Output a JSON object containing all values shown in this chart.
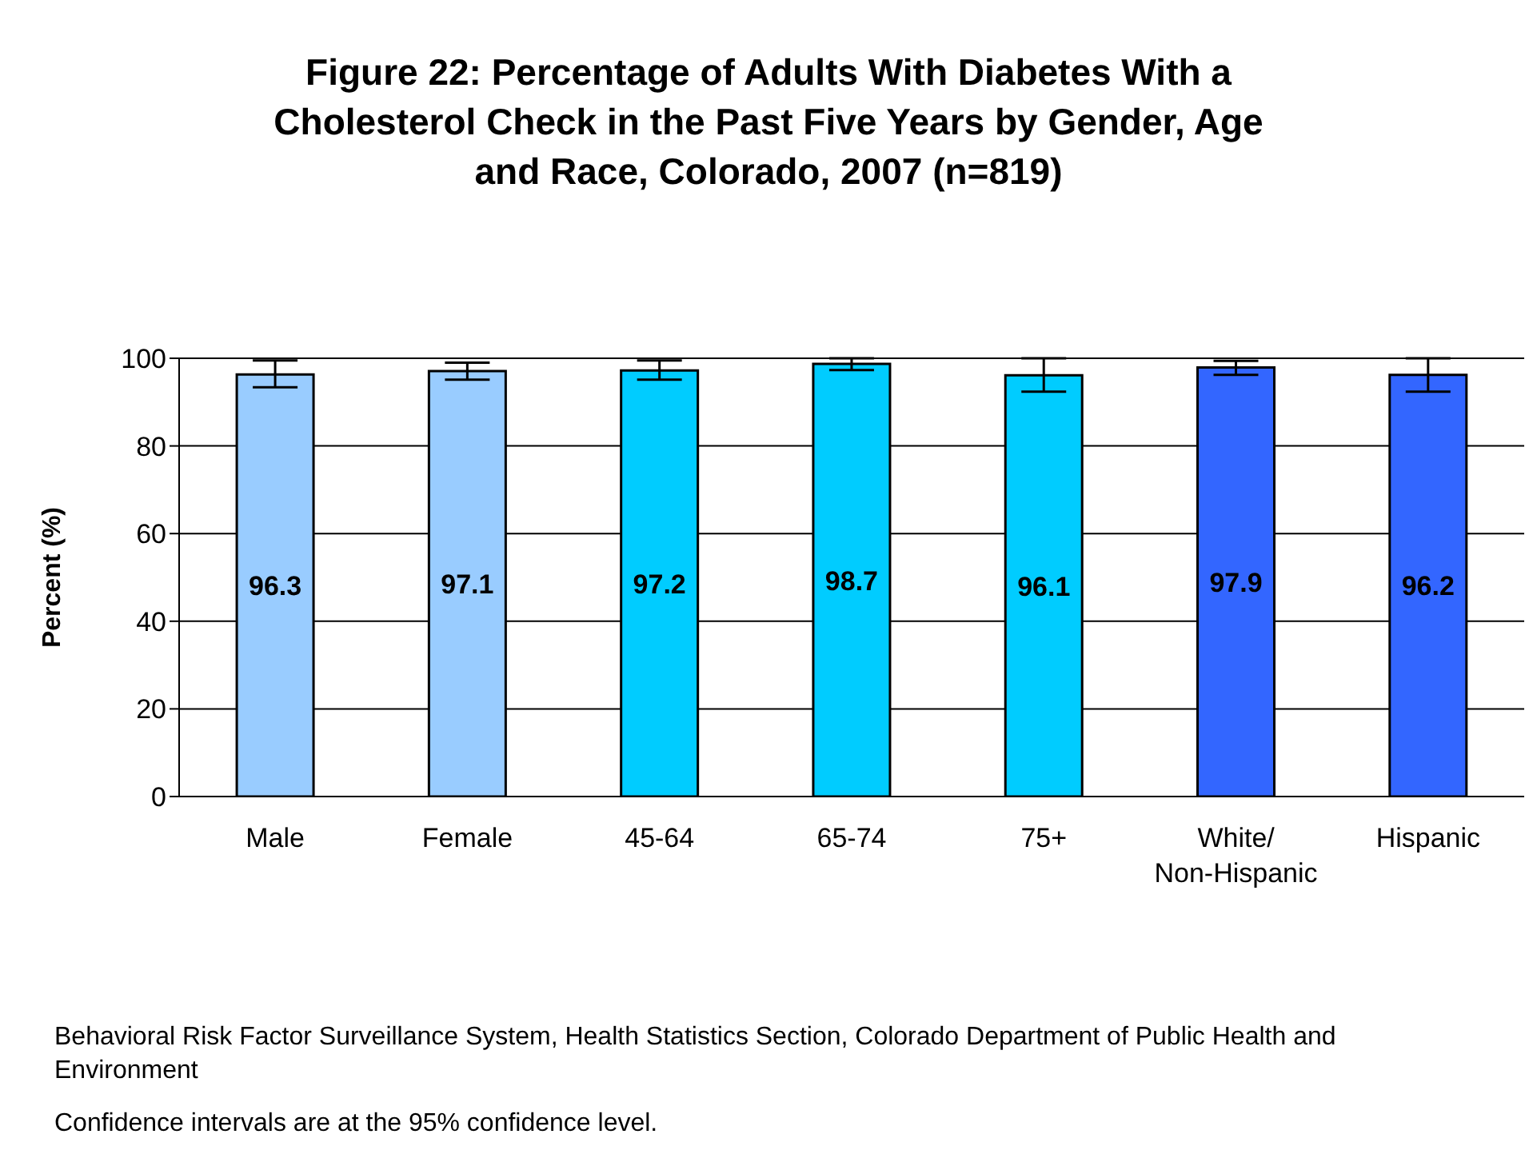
{
  "chart_data": {
    "type": "bar",
    "title": "Figure 22: Percentage of Adults With Diabetes With a Cholesterol Check in the Past Five Years by Gender, Age and Race, Colorado, 2007 (n=819)",
    "ylabel": "Percent (%)",
    "categories": [
      "Male",
      "Female",
      "45-64",
      "65-74",
      "75+",
      "White/ Non-Hispanic",
      "Hispanic"
    ],
    "values": [
      96.3,
      97.1,
      97.2,
      98.7,
      96.1,
      97.9,
      96.2
    ],
    "colors": [
      "#99ccff",
      "#99ccff",
      "#00ccff",
      "#00ccff",
      "#00ccff",
      "#3366ff",
      "#3366ff"
    ],
    "errors": [
      [
        93.4,
        99.5
      ],
      [
        95.1,
        99.0
      ],
      [
        95.1,
        99.5
      ],
      [
        97.3,
        100
      ],
      [
        92.4,
        100
      ],
      [
        96.2,
        99.4
      ],
      [
        92.4,
        100
      ]
    ],
    "ylim": [
      0,
      100
    ],
    "yticks": [
      0,
      20,
      40,
      60,
      80,
      100
    ],
    "grid": "y",
    "data_labels": true,
    "annotations": [
      "Behavioral Risk Factor Surveillance System, Health Statistics Section, Colorado Department of Public Health and Environment",
      "Confidence intervals are at the 95% confidence level."
    ]
  }
}
